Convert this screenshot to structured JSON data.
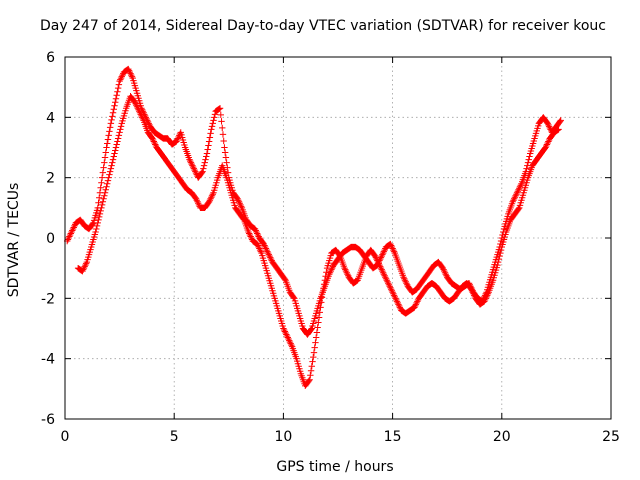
{
  "chart_data": {
    "type": "scatter",
    "title": "Day 247 of 2014, Sidereal Day-to-day VTEC variation (SDTVAR) for receiver kouc",
    "xlabel": "GPS time / hours",
    "ylabel": "SDTVAR / TECUs",
    "xlim": [
      0,
      25
    ],
    "ylim": [
      -6,
      6
    ],
    "xticks": [
      "0",
      "5",
      "10",
      "15",
      "20",
      "25"
    ],
    "yticks": [
      "-6",
      "-4",
      "-2",
      "0",
      "2",
      "4",
      "6"
    ],
    "grid": true,
    "marker": "+",
    "color": "#ff0000",
    "series": [
      {
        "x": [
          0.1,
          0.3,
          0.5,
          0.7,
          0.9,
          1.1,
          1.3,
          1.5,
          1.7,
          1.9,
          2.1,
          2.3,
          2.5,
          2.7,
          2.9,
          3.1,
          3.3,
          3.5,
          3.7,
          3.9,
          4.1,
          4.3,
          4.5,
          4.7,
          4.9,
          5.1,
          5.3,
          5.5,
          5.7,
          5.9,
          6.1,
          6.3,
          6.5,
          6.7,
          6.9,
          7.1,
          7.3,
          7.5,
          7.7,
          7.9,
          8.1,
          8.3,
          8.5,
          8.7,
          8.9,
          9.1,
          9.3,
          9.5,
          9.7,
          9.9,
          10.1,
          10.3,
          10.5,
          10.7,
          10.9,
          11.1,
          11.3,
          11.5,
          11.7,
          11.9,
          12.1,
          12.3,
          12.5,
          12.7,
          12.9,
          13.1,
          13.3,
          13.5,
          13.7,
          13.9,
          14.1,
          14.3,
          14.5,
          14.7,
          14.9,
          15.1,
          15.3,
          15.5,
          15.7,
          15.9,
          16.1,
          16.3,
          16.5,
          16.7,
          16.9,
          17.1,
          17.3,
          17.5,
          17.7,
          17.9,
          18.1,
          18.3,
          18.5,
          18.7,
          18.9,
          19.1,
          19.3,
          19.5,
          19.7,
          19.9,
          20.1,
          20.3,
          20.5,
          20.7,
          20.9,
          21.1,
          21.3,
          21.5,
          21.7,
          21.9,
          22.1,
          22.3,
          22.5,
          22.7
        ],
        "y": [
          -0.1,
          0.2,
          0.5,
          0.6,
          0.4,
          0.3,
          0.5,
          1.0,
          2.0,
          3.0,
          3.8,
          4.5,
          5.2,
          5.5,
          5.6,
          5.3,
          4.8,
          4.3,
          4.0,
          3.7,
          3.5,
          3.4,
          3.3,
          3.3,
          3.1,
          3.2,
          3.5,
          3.0,
          2.6,
          2.3,
          2.0,
          2.2,
          2.8,
          3.6,
          4.2,
          4.3,
          3.0,
          2.0,
          1.5,
          1.3,
          1.0,
          0.6,
          0.4,
          0.3,
          0.0,
          -0.2,
          -0.5,
          -0.8,
          -1.0,
          -1.2,
          -1.4,
          -1.8,
          -2.0,
          -2.5,
          -3.0,
          -3.2,
          -3.0,
          -2.5,
          -2.0,
          -1.6,
          -1.2,
          -0.9,
          -0.7,
          -0.5,
          -0.4,
          -0.3,
          -0.3,
          -0.4,
          -0.6,
          -0.8,
          -1.0,
          -0.9,
          -0.6,
          -0.3,
          -0.2,
          -0.5,
          -0.9,
          -1.3,
          -1.6,
          -1.8,
          -1.7,
          -1.5,
          -1.3,
          -1.1,
          -0.9,
          -0.8,
          -1.0,
          -1.3,
          -1.5,
          -1.6,
          -1.7,
          -1.6,
          -1.5,
          -1.8,
          -2.0,
          -2.1,
          -1.8,
          -1.3,
          -0.8,
          -0.3,
          0.3,
          0.8,
          1.2,
          1.5,
          1.8,
          2.2,
          2.8,
          3.3,
          3.8,
          4.0,
          3.8,
          3.5,
          3.7,
          3.9
        ]
      },
      {
        "x": [
          0.6,
          0.8,
          1.0,
          1.2,
          1.4,
          1.6,
          1.8,
          2.0,
          2.2,
          2.4,
          2.6,
          2.8,
          3.0,
          3.2,
          3.4,
          3.6,
          3.8,
          4.0,
          4.2,
          4.4,
          4.6,
          4.8,
          5.0,
          5.2,
          5.4,
          5.6,
          5.8,
          6.0,
          6.2,
          6.4,
          6.6,
          6.8,
          7.0,
          7.2,
          7.4,
          7.6,
          7.8,
          8.0,
          8.2,
          8.4,
          8.6,
          8.8,
          9.0,
          9.2,
          9.4,
          9.6,
          9.8,
          10.0,
          10.2,
          10.4,
          10.6,
          10.8,
          11.0,
          11.2,
          11.4,
          11.6,
          11.8,
          12.0,
          12.2,
          12.4,
          12.6,
          12.8,
          13.0,
          13.2,
          13.4,
          13.6,
          13.8,
          14.0,
          14.2,
          14.4,
          14.6,
          14.8,
          15.0,
          15.2,
          15.4,
          15.6,
          15.8,
          16.0,
          16.2,
          16.4,
          16.6,
          16.8,
          17.0,
          17.2,
          17.4,
          17.6,
          17.8,
          18.0,
          18.2,
          18.4,
          18.6,
          18.8,
          19.0,
          19.2,
          19.4,
          19.6,
          19.8,
          20.0,
          20.2,
          20.4,
          20.6,
          20.8,
          21.0,
          21.2,
          21.4,
          21.6,
          21.8,
          22.0,
          22.2,
          22.4,
          22.6
        ],
        "y": [
          -1.0,
          -1.1,
          -0.8,
          -0.3,
          0.2,
          0.8,
          1.4,
          2.0,
          2.6,
          3.2,
          3.8,
          4.3,
          4.7,
          4.5,
          4.2,
          3.9,
          3.5,
          3.3,
          3.0,
          2.8,
          2.6,
          2.4,
          2.2,
          2.0,
          1.8,
          1.6,
          1.5,
          1.3,
          1.0,
          1.0,
          1.2,
          1.5,
          2.0,
          2.4,
          2.0,
          1.5,
          1.0,
          0.8,
          0.6,
          0.2,
          -0.1,
          -0.2,
          -0.5,
          -1.0,
          -1.5,
          -2.0,
          -2.5,
          -3.0,
          -3.3,
          -3.6,
          -4.0,
          -4.5,
          -4.9,
          -4.7,
          -3.8,
          -2.8,
          -1.8,
          -1.0,
          -0.5,
          -0.4,
          -0.6,
          -1.0,
          -1.3,
          -1.5,
          -1.4,
          -1.0,
          -0.6,
          -0.4,
          -0.6,
          -0.9,
          -1.2,
          -1.5,
          -1.8,
          -2.1,
          -2.4,
          -2.5,
          -2.4,
          -2.3,
          -2.0,
          -1.8,
          -1.6,
          -1.5,
          -1.6,
          -1.8,
          -2.0,
          -2.1,
          -2.0,
          -1.8,
          -1.6,
          -1.5,
          -1.7,
          -2.0,
          -2.2,
          -2.1,
          -1.8,
          -1.4,
          -0.9,
          -0.3,
          0.2,
          0.6,
          0.8,
          1.0,
          1.5,
          2.0,
          2.4,
          2.6,
          2.8,
          3.0,
          3.3,
          3.5,
          3.6
        ]
      }
    ]
  }
}
